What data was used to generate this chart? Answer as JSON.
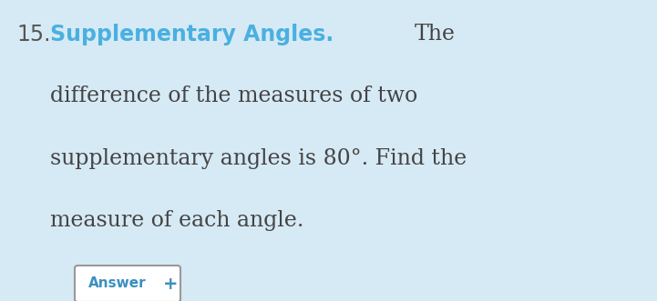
{
  "background_color": "#d6eaf5",
  "number_text": "15.",
  "number_color": "#555555",
  "number_fontsize": 17,
  "title_text": "Supplementary Angles.",
  "title_color": "#4ab0e0",
  "title_fontsize": 17,
  "body_text_color": "#444444",
  "body_fontsize": 17,
  "line1_suffix": "The",
  "line2": "difference of the measures of two",
  "line3": "supplementary angles is 80°. Find the",
  "line4": "measure of each angle.",
  "button_text": "Answer",
  "button_color": "#ffffff",
  "button_border_color": "#999999",
  "button_text_color": "#3a8fc0",
  "button_fontsize": 11
}
